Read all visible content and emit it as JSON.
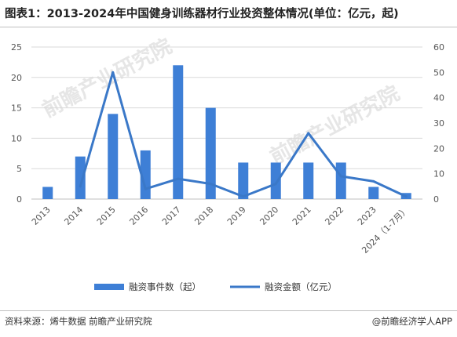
{
  "title": "图表1：2013-2024年中国健身训练器材行业投资整体情况(单位：亿元，起)",
  "watermark": "前瞻产业研究院",
  "source": "资料来源：烯牛数据 前瞻产业研究院",
  "credit": "@前瞻经济学人APP",
  "colors": {
    "bar": "#3e7fd6",
    "line": "#3a78c8",
    "grid": "#d9d9d9",
    "axis_text": "#555555"
  },
  "chart_data": {
    "type": "bar",
    "categories": [
      "2013",
      "2014",
      "2015",
      "2016",
      "2017",
      "2018",
      "2019",
      "2020",
      "2021",
      "2022",
      "2023",
      "2024（1-7月）"
    ],
    "series": [
      {
        "name": "融资事件数（起）",
        "type": "bar",
        "axis": "left",
        "values": [
          2,
          7,
          14,
          8,
          22,
          15,
          6,
          6,
          6,
          6,
          2,
          1
        ]
      },
      {
        "name": "融资金额（亿元）",
        "type": "line",
        "axis": "right",
        "values": [
          null,
          5,
          50,
          4,
          8,
          6,
          1,
          6,
          26,
          9,
          7,
          1
        ]
      }
    ],
    "y_left": {
      "min": 0,
      "max": 25,
      "ticks": [
        0,
        5,
        10,
        15,
        20,
        25
      ]
    },
    "y_right": {
      "min": 0,
      "max": 60,
      "ticks": [
        0,
        10,
        20,
        30,
        40,
        50,
        60
      ]
    },
    "grid": true,
    "legend_position": "bottom"
  }
}
